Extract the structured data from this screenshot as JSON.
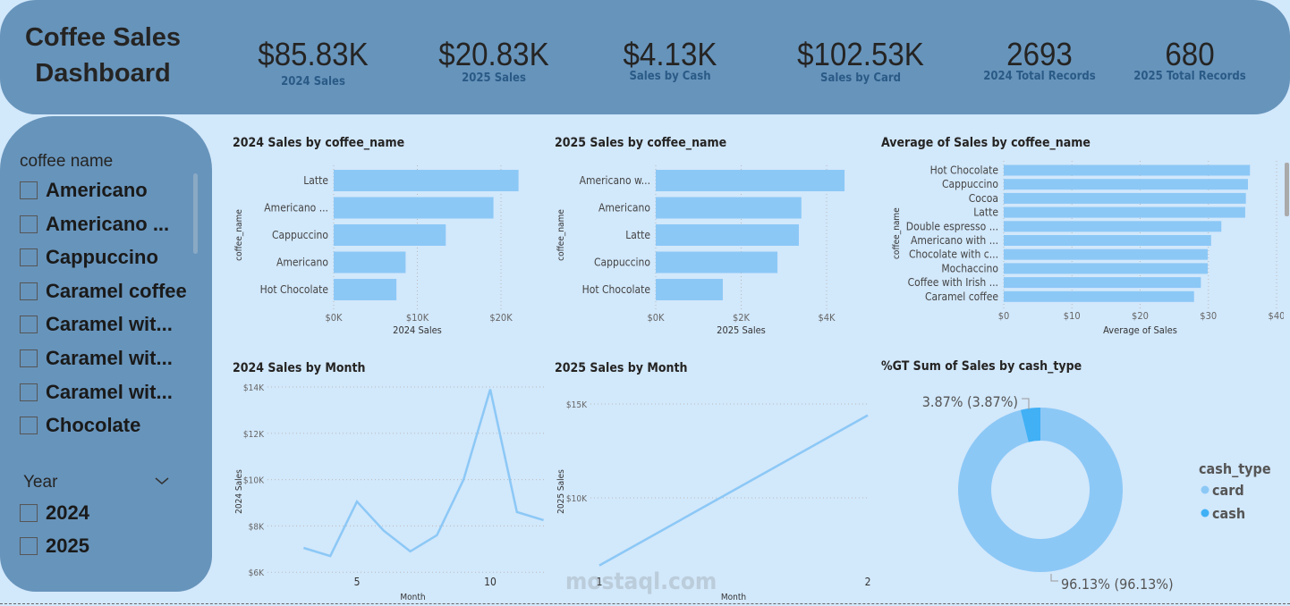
{
  "header": {
    "title": "Coffee Sales Dashboard",
    "kpis": [
      {
        "value": "$85.83K",
        "label": "2024 Sales"
      },
      {
        "value": "$20.83K",
        "label": "2025 Sales"
      },
      {
        "value": "$4.13K",
        "label": "Sales by Cash"
      },
      {
        "value": "$102.53K",
        "label": "Sales by Card"
      },
      {
        "value": "2693",
        "label": "2024 Total Records"
      },
      {
        "value": "680",
        "label": "2025 Total Records"
      }
    ]
  },
  "sidebar": {
    "coffee_label": "coffee name",
    "coffee_items": [
      "Americano",
      "Americano ...",
      "Cappuccino",
      "Caramel coffee",
      "Caramel wit...",
      "Caramel wit...",
      "Caramel wit...",
      "Chocolate"
    ],
    "year_label": "Year",
    "year_items": [
      "2024",
      "2025"
    ]
  },
  "colors": {
    "bar": "#8cc8f6",
    "cash": "#41b0f5",
    "header": "#6794bb",
    "background": "#d2e8fb"
  },
  "chart_data": [
    {
      "type": "bar",
      "title": "2024 Sales by coffee_name",
      "xlabel": "2024 Sales",
      "ylabel": "coffee_name",
      "categories": [
        "Latte",
        "Americano ...",
        "Cappuccino",
        "Americano",
        "Hot Chocolate"
      ],
      "values": [
        22100,
        19100,
        13400,
        8600,
        7500
      ],
      "ticks": [
        "$0K",
        "$10K",
        "$20K"
      ],
      "tick_values": [
        0,
        10000,
        20000
      ]
    },
    {
      "type": "bar",
      "title": "2025 Sales by coffee_name",
      "xlabel": "2025 Sales",
      "ylabel": "coffee_name",
      "categories": [
        "Americano w...",
        "Americano",
        "Latte",
        "Cappuccino",
        "Hot Chocolate"
      ],
      "values": [
        4420,
        3410,
        3350,
        2850,
        1570
      ],
      "ticks": [
        "$0K",
        "$2K",
        "$4K"
      ],
      "tick_values": [
        0,
        2000,
        4000
      ]
    },
    {
      "type": "bar",
      "title": "Average of Sales by coffee_name",
      "xlabel": "Average of Sales",
      "ylabel": "coffee_name",
      "categories": [
        "Hot Chocolate",
        "Cappuccino",
        "Cocoa",
        "Latte",
        "Double espresso ...",
        "Americano with ...",
        "Chocolate with c...",
        "Mochaccino",
        "Coffee with Irish ...",
        "Caramel coffee"
      ],
      "values": [
        36.1,
        35.8,
        35.5,
        35.4,
        31.9,
        30.4,
        29.9,
        29.9,
        28.9,
        27.9
      ],
      "ticks": [
        "$0",
        "$10",
        "$20",
        "$30",
        "$40"
      ],
      "tick_values": [
        0,
        10,
        20,
        30,
        40
      ]
    },
    {
      "type": "line",
      "title": "2024 Sales by Month",
      "xlabel": "Month",
      "ylabel": "2024 Sales",
      "x": [
        3,
        4,
        5,
        6,
        7,
        8,
        9,
        10,
        11,
        12
      ],
      "y": [
        7050,
        6700,
        9050,
        7800,
        6900,
        7600,
        10000,
        13900,
        8600,
        8250
      ],
      "yticks": [
        "$6K",
        "$8K",
        "$10K",
        "$12K",
        "$14K"
      ],
      "ytick_values": [
        6000,
        8000,
        10000,
        12000,
        14000
      ],
      "xticks": [
        "5",
        "10"
      ],
      "xtick_values": [
        5,
        10
      ]
    },
    {
      "type": "line",
      "title": "2025 Sales by Month",
      "xlabel": "Month",
      "ylabel": "2025 Sales",
      "x": [
        1,
        2
      ],
      "y": [
        6400,
        14400
      ],
      "yticks": [
        "$10K",
        "$15K"
      ],
      "ytick_values": [
        10000,
        15000
      ],
      "xticks": [
        "1",
        "2"
      ],
      "xtick_values": [
        1,
        2
      ]
    },
    {
      "type": "pie",
      "title": "%GT Sum of Sales by cash_type",
      "legend_title": "cash_type",
      "categories": [
        "card",
        "cash"
      ],
      "values": [
        96.13,
        3.87
      ],
      "labels": [
        "96.13% (96.13%)",
        "3.87% (3.87%)"
      ],
      "legend": "right"
    }
  ],
  "watermark": "mostaql.com"
}
